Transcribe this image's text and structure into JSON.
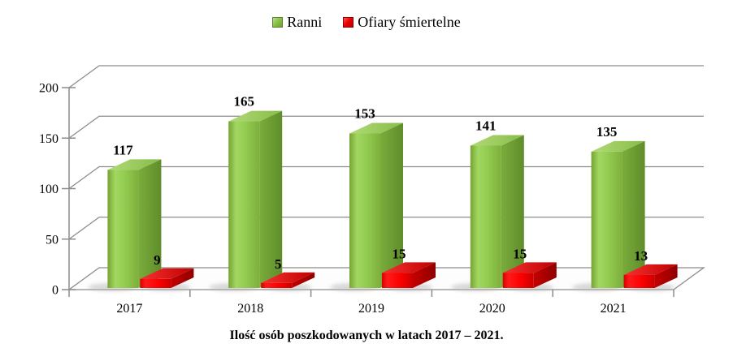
{
  "caption": "Ilość osób poszkodowanych w latach 2017 – 2021.",
  "legend": {
    "items": [
      {
        "label": "Ranni",
        "swatch": "green-square-swatch"
      },
      {
        "label": "Ofiary śmiertelne",
        "swatch": "red-square-swatch"
      }
    ]
  },
  "chart_data": {
    "type": "bar",
    "style": "3d-clustered-column",
    "categories": [
      "2017",
      "2018",
      "2019",
      "2020",
      "2021"
    ],
    "series": [
      {
        "name": "Ranni",
        "color": "#8CC249",
        "values": [
          117,
          165,
          153,
          141,
          135
        ]
      },
      {
        "name": "Ofiary śmiertelne",
        "color": "#FF0000",
        "values": [
          9,
          5,
          15,
          15,
          13
        ]
      }
    ],
    "value_labels": true,
    "title": "Ilość osób poszkodowanych w latach 2017 – 2021.",
    "xlabel": "",
    "ylabel": "",
    "ylim": [
      0,
      200
    ],
    "yticks": [
      0,
      50,
      100,
      150,
      200
    ],
    "grid": true,
    "legend_position": "top",
    "colors": {
      "grid": "#8C8C8C",
      "text": "#000000",
      "green_front": "#8CC249",
      "green_top": "#A9D56C",
      "green_side": "#6F9E33",
      "red_front": "#FF0000",
      "red_top": "#E51515",
      "red_side": "#A80000"
    }
  }
}
